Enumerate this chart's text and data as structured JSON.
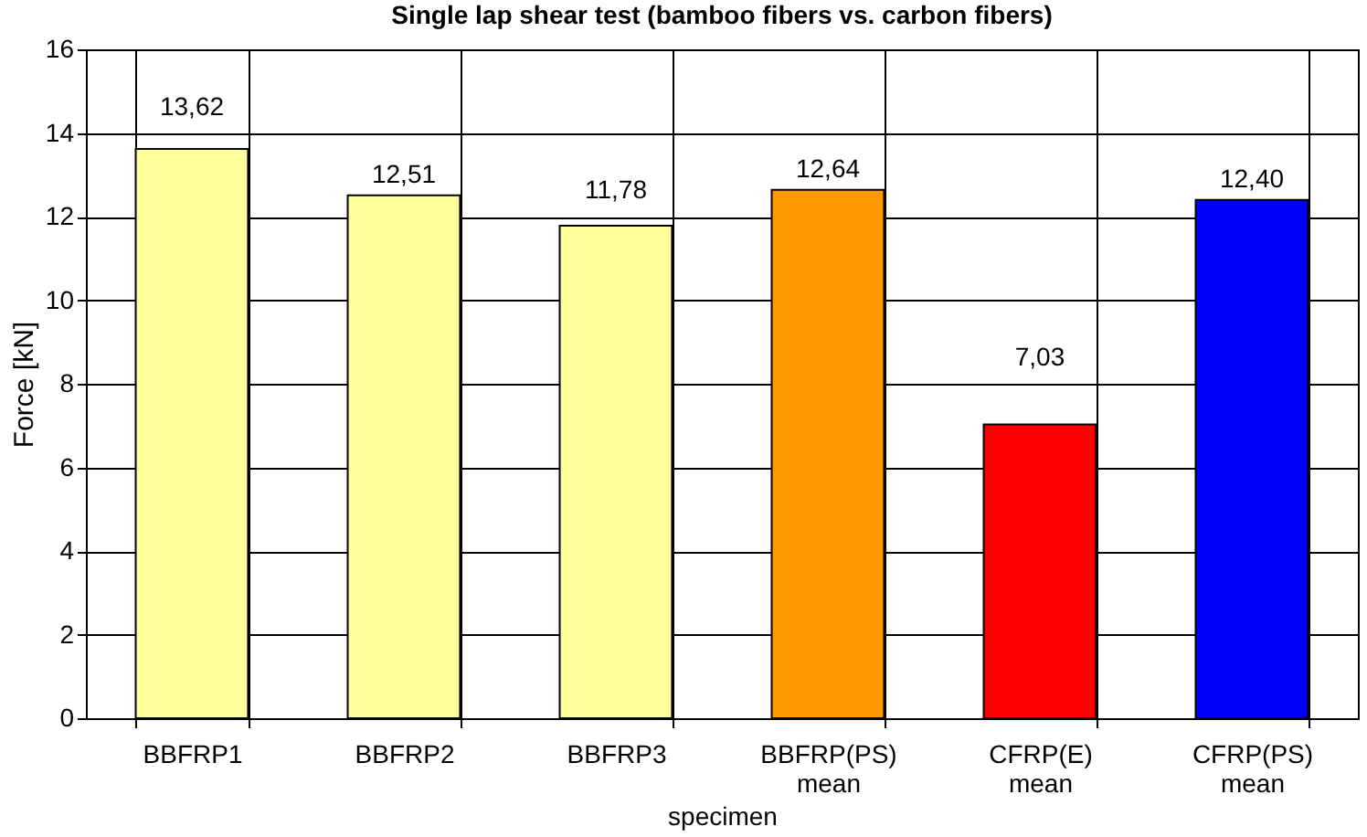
{
  "chart_data": {
    "type": "bar",
    "title": "Single lap shear test (bamboo fibers vs. carbon fibers)",
    "xlabel": "specimen",
    "ylabel": "Force [kN]",
    "categories": [
      "BBFRP1",
      "BBFRP2",
      "BBFRP3",
      "BBFRP(PS) mean",
      "CFRP(E) mean",
      "CFRP(PS) mean"
    ],
    "values": [
      13.62,
      12.51,
      11.78,
      12.64,
      7.03,
      12.4
    ],
    "value_labels": [
      "13,62",
      "12,51",
      "11,78",
      "12,64",
      "7,03",
      "12,40"
    ],
    "colors": [
      "#ffff99",
      "#ffff99",
      "#ffff99",
      "#ff9900",
      "#ff0000",
      "#0000ff"
    ],
    "ylim": [
      0,
      16
    ],
    "yticks": [
      0,
      2,
      4,
      6,
      8,
      10,
      12,
      14,
      16
    ],
    "grid": true
  }
}
